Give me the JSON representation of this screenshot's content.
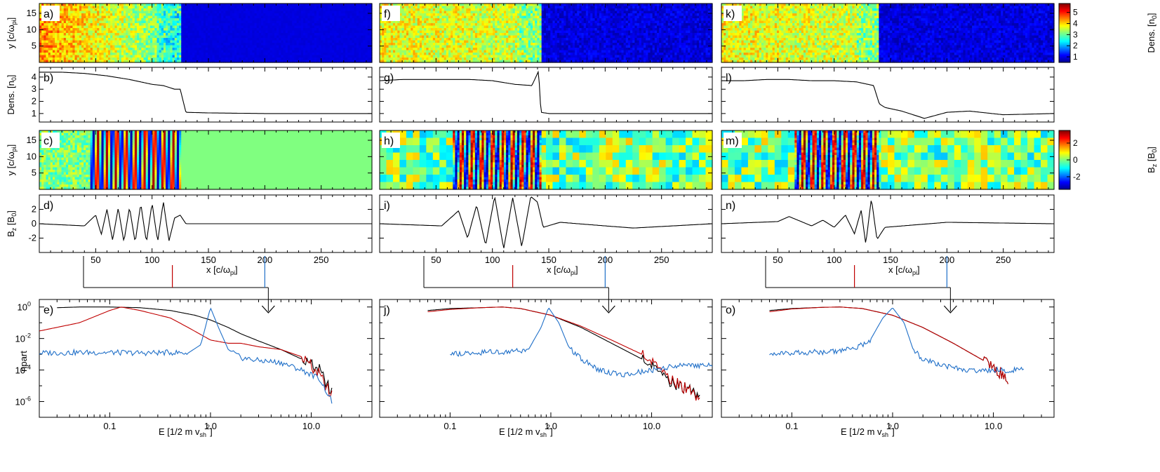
{
  "figure": {
    "columns": [
      {
        "labels": [
          "a)",
          "b)",
          "c)",
          "d)",
          "e)"
        ],
        "shock_x": 125,
        "dens_level": 4.4,
        "red_marker_x": 118,
        "blue_marker_x": 200
      },
      {
        "labels": [
          "f)",
          "g)",
          "h)",
          "i)",
          "j)"
        ],
        "shock_x": 143,
        "dens_level": 3.8,
        "red_marker_x": 118,
        "blue_marker_x": 200
      },
      {
        "labels": [
          "k)",
          "l)",
          "m)",
          "n)",
          "o)"
        ],
        "shock_x": 140,
        "dens_level": 3.7,
        "red_marker_x": 118,
        "blue_marker_x": 200
      }
    ],
    "ylabel_y": "y [c/ω",
    "ylabel_y_sub": "pi",
    "ylabel_dens": "Dens. [n",
    "ylabel_dens_sub": "0",
    "ylabel_bz": "B",
    "ylabel_bz_sub": "z",
    "ylabel_bz_unit": " [B",
    "ylabel_bz_unit_sub": "0",
    "ylabel_npart": "npart",
    "xlabel_x": "x [c/ω",
    "xlabel_x_sub": "pi",
    "xlabel_e": "E [1/2 m v",
    "xlabel_e_sub": "sh",
    "xlabel_e_sup": "2",
    "cbar_dens_label": "Dens. [n",
    "cbar_dens_sub": "0",
    "cbar_dens_ticks": [
      "5",
      "4",
      "3",
      "2",
      "1"
    ],
    "cbar_bz_label": "B",
    "cbar_bz_sub": "z",
    "cbar_bz_unit": " [B",
    "cbar_bz_unit_sub": "0",
    "cbar_bz_ticks": [
      "2",
      "0",
      "-2"
    ],
    "y_ticks_map": [
      "15",
      "10",
      "5"
    ],
    "dens_ticks": [
      "4",
      "3",
      "2",
      "1"
    ],
    "bz_ticks": [
      "2",
      "0",
      "-2"
    ],
    "x_ticks": [
      "50",
      "100",
      "150",
      "200",
      "250"
    ],
    "e_ticks": [
      "0.1",
      "1.0",
      "10.0"
    ],
    "npart_ticks": [
      "10",
      "10",
      "10",
      "10"
    ],
    "npart_tick_exp": [
      "0",
      "-2",
      "-4",
      "-6"
    ]
  },
  "chart_data": [
    {
      "type": "heatmap",
      "panels": [
        "a",
        "f",
        "k"
      ],
      "quantity": "Dens. [n0]",
      "xlim": [
        0,
        295
      ],
      "ylim": [
        0,
        18
      ],
      "colorbar_range": [
        0.5,
        5.8
      ]
    },
    {
      "type": "line",
      "panels": [
        "b",
        "g",
        "l"
      ],
      "ylabel": "Dens. [n0]",
      "ylim": [
        0.3,
        4.8
      ],
      "series": [
        {
          "panel": "b",
          "x": [
            0,
            20,
            40,
            60,
            80,
            100,
            110,
            120,
            125,
            130,
            150,
            200,
            250,
            295
          ],
          "values": [
            4.4,
            4.4,
            4.3,
            4.1,
            3.8,
            3.4,
            3.3,
            3.0,
            3.0,
            1.1,
            1.05,
            1.0,
            1.0,
            1.0
          ]
        },
        {
          "panel": "g",
          "x": [
            0,
            20,
            40,
            60,
            80,
            100,
            120,
            135,
            141,
            143,
            150,
            200,
            250,
            295
          ],
          "values": [
            3.7,
            3.8,
            3.8,
            3.8,
            3.8,
            3.7,
            3.4,
            3.3,
            4.5,
            1.1,
            1.0,
            1.0,
            1.0,
            1.0
          ]
        },
        {
          "panel": "l",
          "x": [
            0,
            20,
            40,
            60,
            80,
            100,
            120,
            135,
            140,
            145,
            160,
            180,
            200,
            220,
            250,
            295
          ],
          "values": [
            3.7,
            3.7,
            3.8,
            3.8,
            3.7,
            3.7,
            3.6,
            3.3,
            1.8,
            1.5,
            1.2,
            0.6,
            1.1,
            1.2,
            0.9,
            1.0
          ]
        }
      ]
    },
    {
      "type": "heatmap",
      "panels": [
        "c",
        "h",
        "m"
      ],
      "quantity": "Bz [B0]",
      "xlim": [
        0,
        295
      ],
      "ylim": [
        0,
        18
      ],
      "colorbar_range": [
        -3.5,
        3.5
      ]
    },
    {
      "type": "line",
      "panels": [
        "d",
        "i",
        "n"
      ],
      "ylabel": "Bz [B0]",
      "xlabel": "x [c/ωpi]",
      "xlim": [
        0,
        295
      ],
      "ylim": [
        -4,
        4
      ],
      "series": [
        {
          "panel": "d",
          "x": [
            0,
            40,
            50,
            55,
            60,
            65,
            70,
            75,
            80,
            85,
            90,
            95,
            100,
            105,
            110,
            115,
            120,
            125,
            130,
            295
          ],
          "values": [
            0,
            -0.3,
            1.2,
            -1.5,
            2.0,
            -2.3,
            2.2,
            -2.5,
            2.3,
            -2.6,
            2.8,
            -2.6,
            2.9,
            -2.5,
            3.1,
            -2.4,
            0.8,
            1.2,
            0,
            0
          ]
        },
        {
          "panel": "i",
          "x": [
            0,
            55,
            70,
            78,
            86,
            94,
            102,
            110,
            118,
            126,
            134,
            140,
            145,
            160,
            200,
            225,
            295
          ],
          "values": [
            0,
            -0.3,
            1.8,
            -2.0,
            2.6,
            -3.0,
            3.8,
            -3.5,
            3.6,
            -3.2,
            3.8,
            3.0,
            -0.5,
            0.2,
            -0.3,
            -0.6,
            0
          ]
        },
        {
          "panel": "n",
          "x": [
            0,
            50,
            60,
            80,
            90,
            100,
            110,
            118,
            124,
            128,
            133,
            138,
            145,
            200,
            295
          ],
          "values": [
            0,
            0.3,
            1.0,
            -0.3,
            0.5,
            -0.5,
            1.2,
            -1.4,
            1.9,
            -2.8,
            3.5,
            -2.2,
            -0.5,
            0.2,
            0
          ]
        }
      ]
    },
    {
      "type": "line",
      "panels": [
        "e",
        "j",
        "o"
      ],
      "xlabel": "E [1/2 m vsh^2]",
      "ylabel": "npart",
      "xscale": "log",
      "yscale": "log",
      "xlim": [
        0.02,
        40
      ],
      "ylim": [
        1e-07,
        3
      ],
      "series": [
        {
          "panel": "e",
          "name": "black",
          "x": [
            0.03,
            0.05,
            0.1,
            0.2,
            0.4,
            0.7,
            1.0,
            1.5,
            2.0,
            3.0,
            5.0,
            8.0,
            12.0,
            16.0
          ],
          "values": [
            0.9,
            1.0,
            1.0,
            0.9,
            0.6,
            0.3,
            0.15,
            0.05,
            0.02,
            0.007,
            0.002,
            0.0005,
            0.0001,
            3e-06
          ]
        },
        {
          "panel": "e",
          "name": "red",
          "x": [
            0.02,
            0.05,
            0.1,
            0.13,
            0.2,
            0.4,
            0.6,
            1.0,
            1.5,
            2.0,
            3.0,
            5.0,
            8.0,
            12.0,
            16.0
          ],
          "values": [
            0.03,
            0.1,
            0.6,
            1.0,
            0.6,
            0.2,
            0.05,
            0.008,
            0.005,
            0.005,
            0.003,
            0.002,
            0.0007,
            5e-05,
            2e-06
          ]
        },
        {
          "panel": "e",
          "name": "blue",
          "x": [
            0.02,
            0.05,
            0.1,
            0.2,
            0.4,
            0.6,
            0.8,
            1.0,
            1.2,
            1.5,
            2.0,
            3.0,
            5.0,
            8.0,
            12.0,
            16.0
          ],
          "values": [
            0.0012,
            0.0013,
            0.0013,
            0.0012,
            0.0013,
            0.0012,
            0.004,
            0.9,
            0.05,
            0.002,
            0.0006,
            0.0004,
            0.0003,
            0.0001,
            3e-05,
            1e-06
          ]
        },
        {
          "panel": "j",
          "name": "black",
          "x": [
            0.06,
            0.1,
            0.2,
            0.33,
            0.5,
            1.0,
            2.0,
            4.0,
            8.0,
            15.0,
            30.0
          ],
          "values": [
            0.6,
            0.8,
            0.9,
            1.0,
            0.8,
            0.3,
            0.05,
            0.005,
            0.0005,
            2e-05,
            3e-06
          ]
        },
        {
          "panel": "j",
          "name": "red",
          "x": [
            0.06,
            0.1,
            0.2,
            0.33,
            0.5,
            1.0,
            2.0,
            4.0,
            8.0,
            15.0,
            30.0
          ],
          "values": [
            0.5,
            0.7,
            0.9,
            1.0,
            0.8,
            0.3,
            0.06,
            0.008,
            0.001,
            3e-05,
            2e-06
          ]
        },
        {
          "panel": "j",
          "name": "blue",
          "x": [
            0.1,
            0.2,
            0.4,
            0.6,
            0.8,
            0.95,
            1.2,
            1.5,
            2.0,
            3.0,
            5.0,
            10.0,
            20.0,
            40.0
          ],
          "values": [
            0.001,
            0.0013,
            0.0015,
            0.002,
            0.05,
            0.9,
            0.1,
            0.003,
            0.0005,
            0.0001,
            5e-05,
            0.0001,
            0.0002,
            0.0002
          ]
        },
        {
          "panel": "o",
          "name": "black",
          "x": [
            0.06,
            0.1,
            0.2,
            0.3,
            0.5,
            1.0,
            2.0,
            4.0,
            8.0,
            14.0
          ],
          "values": [
            0.6,
            0.8,
            0.95,
            1.0,
            0.8,
            0.3,
            0.05,
            0.005,
            0.0004,
            3e-05
          ]
        },
        {
          "panel": "o",
          "name": "red",
          "x": [
            0.06,
            0.1,
            0.2,
            0.3,
            0.5,
            1.0,
            2.0,
            4.0,
            8.0,
            14.0
          ],
          "values": [
            0.5,
            0.75,
            0.95,
            1.0,
            0.8,
            0.3,
            0.05,
            0.005,
            0.0004,
            3e-05
          ]
        },
        {
          "panel": "o",
          "name": "blue",
          "x": [
            0.06,
            0.1,
            0.2,
            0.4,
            0.6,
            0.8,
            1.0,
            1.3,
            1.6,
            2.0,
            3.0,
            5.0,
            10.0,
            20.0
          ],
          "values": [
            0.0012,
            0.0013,
            0.0014,
            0.002,
            0.008,
            0.2,
            0.9,
            0.1,
            0.002,
            0.0005,
            0.0002,
            0.0001,
            0.0001,
            0.0001
          ]
        }
      ]
    }
  ]
}
